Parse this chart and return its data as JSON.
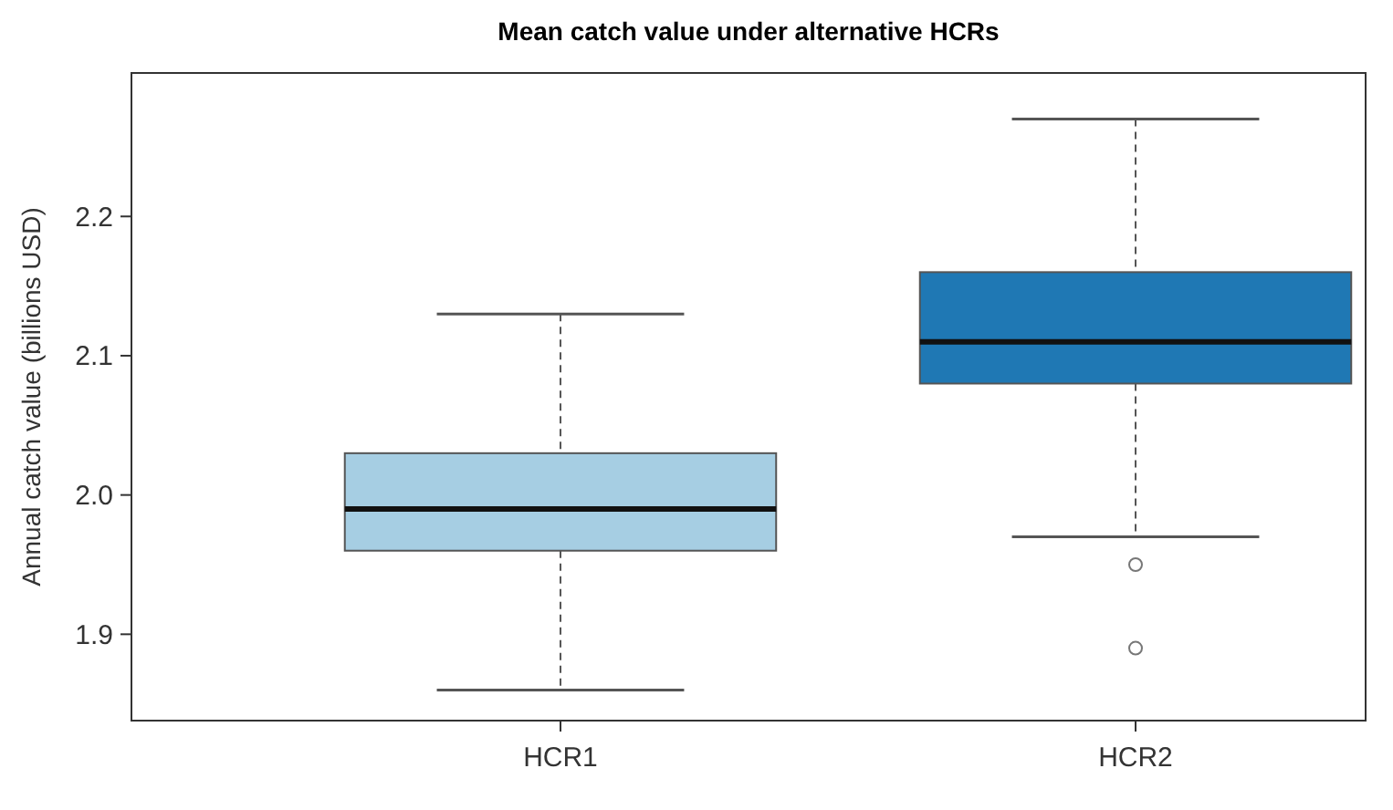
{
  "chart_data": {
    "type": "box",
    "title": "Mean catch value under alternative HCRs",
    "ylabel": "Annual catch value (billions USD)",
    "categories": [
      "HCR1",
      "HCR2"
    ],
    "colors": [
      "#a6cee3",
      "#1f78b4"
    ],
    "boxes": [
      {
        "low": 1.86,
        "q1": 1.96,
        "median": 1.99,
        "q3": 2.03,
        "high": 2.13
      },
      {
        "low": 1.97,
        "q1": 2.08,
        "median": 2.11,
        "q3": 2.16,
        "high": 2.27,
        "outliers": [
          1.95,
          1.89
        ]
      }
    ],
    "ylim": [
      1.838,
      2.303
    ],
    "yticks": [
      {
        "value": 1.9,
        "label": "1.9"
      },
      {
        "value": 2,
        "label": "2.0"
      },
      {
        "value": 2.1,
        "label": "2.1"
      },
      {
        "value": 2.2,
        "label": "2.2"
      }
    ]
  }
}
